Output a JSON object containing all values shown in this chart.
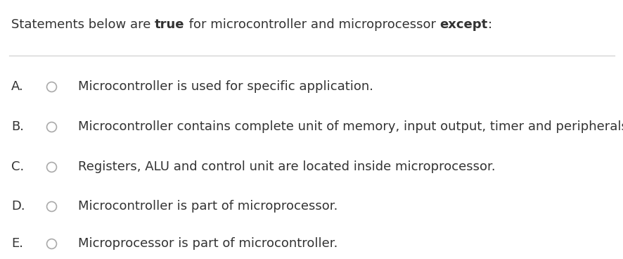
{
  "title_normal": "Statements below are ",
  "title_bold1": "true",
  "title_mid": " for microcontroller and microprocessor ",
  "title_bold2": "except",
  "title_end": ":",
  "bg_color": "#ffffff",
  "text_color": "#333333",
  "label_color": "#333333",
  "line_color": "#cccccc",
  "circle_color": "#aaaaaa",
  "options": [
    {
      "label": "A.",
      "text": "Microcontroller is used for specific application."
    },
    {
      "label": "B.",
      "text": "Microcontroller contains complete unit of memory, input output, timer and peripherals."
    },
    {
      "label": "C.",
      "text": "Registers, ALU and control unit are located inside microprocessor."
    },
    {
      "label": "D.",
      "text": "Microcontroller is part of microprocessor."
    },
    {
      "label": "E.",
      "text": "Microprocessor is part of microcontroller."
    }
  ],
  "title_fontsize": 13.0,
  "option_fontsize": 13.0,
  "label_fontsize": 13.0,
  "fig_width": 8.87,
  "fig_height": 3.68
}
